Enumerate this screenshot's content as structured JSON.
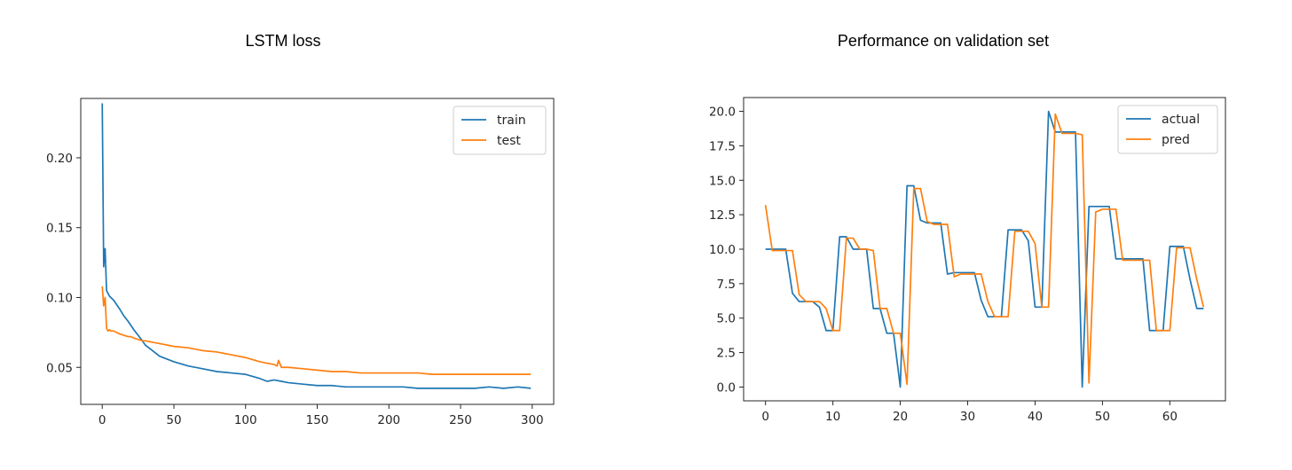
{
  "colors": {
    "blue": "#1f77b4",
    "orange": "#ff7f0e",
    "axis": "#262626",
    "legend_border": "#cccccc"
  },
  "left_panel": {
    "title": "LSTM loss",
    "chart_data": {
      "type": "line",
      "title": "",
      "xlabel": "",
      "ylabel": "",
      "xlim": [
        -15,
        315
      ],
      "ylim": [
        0.0235,
        0.2425
      ],
      "xticks": [
        0,
        50,
        100,
        150,
        200,
        250,
        300
      ],
      "yticks": [
        0.05,
        0.1,
        0.15,
        0.2
      ],
      "ytick_labels": [
        "0.05",
        "0.10",
        "0.15",
        "0.20"
      ],
      "legend": "top-right",
      "grid": false,
      "series": [
        {
          "name": "train",
          "color": "#1f77b4",
          "x": [
            0,
            1,
            2,
            3,
            4,
            5,
            6,
            8,
            10,
            12,
            15,
            18,
            20,
            22,
            25,
            28,
            30,
            35,
            40,
            45,
            50,
            60,
            70,
            80,
            90,
            100,
            110,
            115,
            120,
            125,
            130,
            140,
            150,
            160,
            170,
            180,
            190,
            200,
            210,
            220,
            230,
            240,
            250,
            260,
            270,
            280,
            290,
            299
          ],
          "y": [
            0.239,
            0.122,
            0.135,
            0.105,
            0.103,
            0.101,
            0.1,
            0.098,
            0.095,
            0.092,
            0.087,
            0.083,
            0.08,
            0.077,
            0.073,
            0.069,
            0.066,
            0.062,
            0.058,
            0.056,
            0.054,
            0.051,
            0.049,
            0.047,
            0.046,
            0.045,
            0.042,
            0.04,
            0.041,
            0.04,
            0.039,
            0.038,
            0.037,
            0.037,
            0.036,
            0.036,
            0.036,
            0.036,
            0.036,
            0.035,
            0.035,
            0.035,
            0.035,
            0.035,
            0.036,
            0.035,
            0.036,
            0.035
          ]
        },
        {
          "name": "test",
          "color": "#ff7f0e",
          "x": [
            0,
            1,
            2,
            3,
            4,
            5,
            6,
            8,
            10,
            12,
            15,
            18,
            20,
            22,
            25,
            28,
            30,
            35,
            40,
            50,
            60,
            70,
            80,
            90,
            100,
            110,
            115,
            120,
            122,
            123,
            125,
            130,
            140,
            150,
            160,
            170,
            180,
            190,
            200,
            210,
            220,
            230,
            240,
            250,
            260,
            270,
            280,
            290,
            299
          ],
          "y": [
            0.108,
            0.094,
            0.1,
            0.078,
            0.076,
            0.077,
            0.076,
            0.076,
            0.075,
            0.074,
            0.073,
            0.072,
            0.072,
            0.071,
            0.07,
            0.069,
            0.069,
            0.068,
            0.067,
            0.065,
            0.064,
            0.062,
            0.061,
            0.059,
            0.057,
            0.054,
            0.053,
            0.052,
            0.051,
            0.055,
            0.05,
            0.05,
            0.049,
            0.048,
            0.047,
            0.047,
            0.046,
            0.046,
            0.046,
            0.046,
            0.046,
            0.045,
            0.045,
            0.045,
            0.045,
            0.045,
            0.045,
            0.045,
            0.045
          ]
        }
      ]
    }
  },
  "right_panel": {
    "title": "Performance on validation set",
    "chart_data": {
      "type": "line",
      "title": "",
      "xlabel": "",
      "ylabel": "",
      "xlim": [
        -3.25,
        68.25
      ],
      "ylim": [
        -1.0,
        21.0
      ],
      "xticks": [
        0,
        10,
        20,
        30,
        40,
        50,
        60
      ],
      "yticks": [
        0.0,
        2.5,
        5.0,
        7.5,
        10.0,
        12.5,
        15.0,
        17.5,
        20.0
      ],
      "ytick_labels": [
        "0.0",
        "2.5",
        "5.0",
        "7.5",
        "10.0",
        "12.5",
        "15.0",
        "17.5",
        "20.0"
      ],
      "legend": "top-right",
      "grid": false,
      "series": [
        {
          "name": "actual",
          "color": "#1f77b4",
          "x": [
            0,
            1,
            2,
            3,
            4,
            5,
            6,
            7,
            8,
            9,
            10,
            11,
            12,
            13,
            14,
            15,
            16,
            17,
            18,
            19,
            20,
            21,
            22,
            23,
            24,
            25,
            26,
            27,
            28,
            29,
            30,
            31,
            32,
            33,
            34,
            35,
            36,
            37,
            38,
            39,
            40,
            41,
            42,
            43,
            44,
            45,
            46,
            47,
            48,
            49,
            50,
            51,
            52,
            53,
            54,
            55,
            56,
            57,
            58,
            59,
            60,
            61,
            62,
            63,
            64,
            65
          ],
          "y": [
            10,
            10,
            10,
            10,
            6.8,
            6.2,
            6.2,
            6.2,
            5.8,
            4.1,
            4.1,
            10.9,
            10.9,
            10,
            10,
            10,
            5.7,
            5.7,
            3.9,
            3.9,
            0,
            14.6,
            14.6,
            12.1,
            11.9,
            11.9,
            11.9,
            8.2,
            8.3,
            8.3,
            8.3,
            8.3,
            6.3,
            5.1,
            5.1,
            5.1,
            11.4,
            11.4,
            11.4,
            10.6,
            5.8,
            5.8,
            20.0,
            18.5,
            18.5,
            18.5,
            18.5,
            0,
            13.1,
            13.1,
            13.1,
            13.1,
            9.3,
            9.3,
            9.3,
            9.3,
            9.3,
            4.1,
            4.1,
            4.1,
            10.2,
            10.2,
            10.2,
            7.8,
            5.7,
            5.7
          ]
        },
        {
          "name": "pred",
          "color": "#ff7f0e",
          "x": [
            0,
            1,
            2,
            3,
            4,
            5,
            6,
            7,
            8,
            9,
            10,
            11,
            12,
            13,
            14,
            15,
            16,
            17,
            18,
            19,
            20,
            21,
            22,
            23,
            24,
            25,
            26,
            27,
            28,
            29,
            30,
            31,
            32,
            33,
            34,
            35,
            36,
            37,
            38,
            39,
            40,
            41,
            42,
            43,
            44,
            45,
            46,
            47,
            48,
            49,
            50,
            51,
            52,
            53,
            54,
            55,
            56,
            57,
            58,
            59,
            60,
            61,
            62,
            63,
            64,
            65
          ],
          "y": [
            13.2,
            9.9,
            9.9,
            9.9,
            9.9,
            6.7,
            6.2,
            6.2,
            6.2,
            5.7,
            4.1,
            4.1,
            10.8,
            10.8,
            10,
            10,
            9.9,
            5.7,
            5.7,
            3.9,
            3.9,
            0.2,
            14.4,
            14.4,
            12.0,
            11.8,
            11.8,
            11.8,
            8.0,
            8.2,
            8.2,
            8.2,
            8.2,
            6.2,
            5.1,
            5.1,
            5.1,
            11.3,
            11.3,
            11.3,
            10.4,
            5.8,
            5.8,
            19.8,
            18.4,
            18.4,
            18.4,
            18.3,
            0.3,
            12.7,
            12.9,
            12.9,
            12.9,
            9.2,
            9.2,
            9.2,
            9.2,
            9.2,
            4.1,
            4.1,
            4.1,
            10.1,
            10.1,
            10.1,
            7.8,
            5.8
          ]
        }
      ]
    }
  }
}
